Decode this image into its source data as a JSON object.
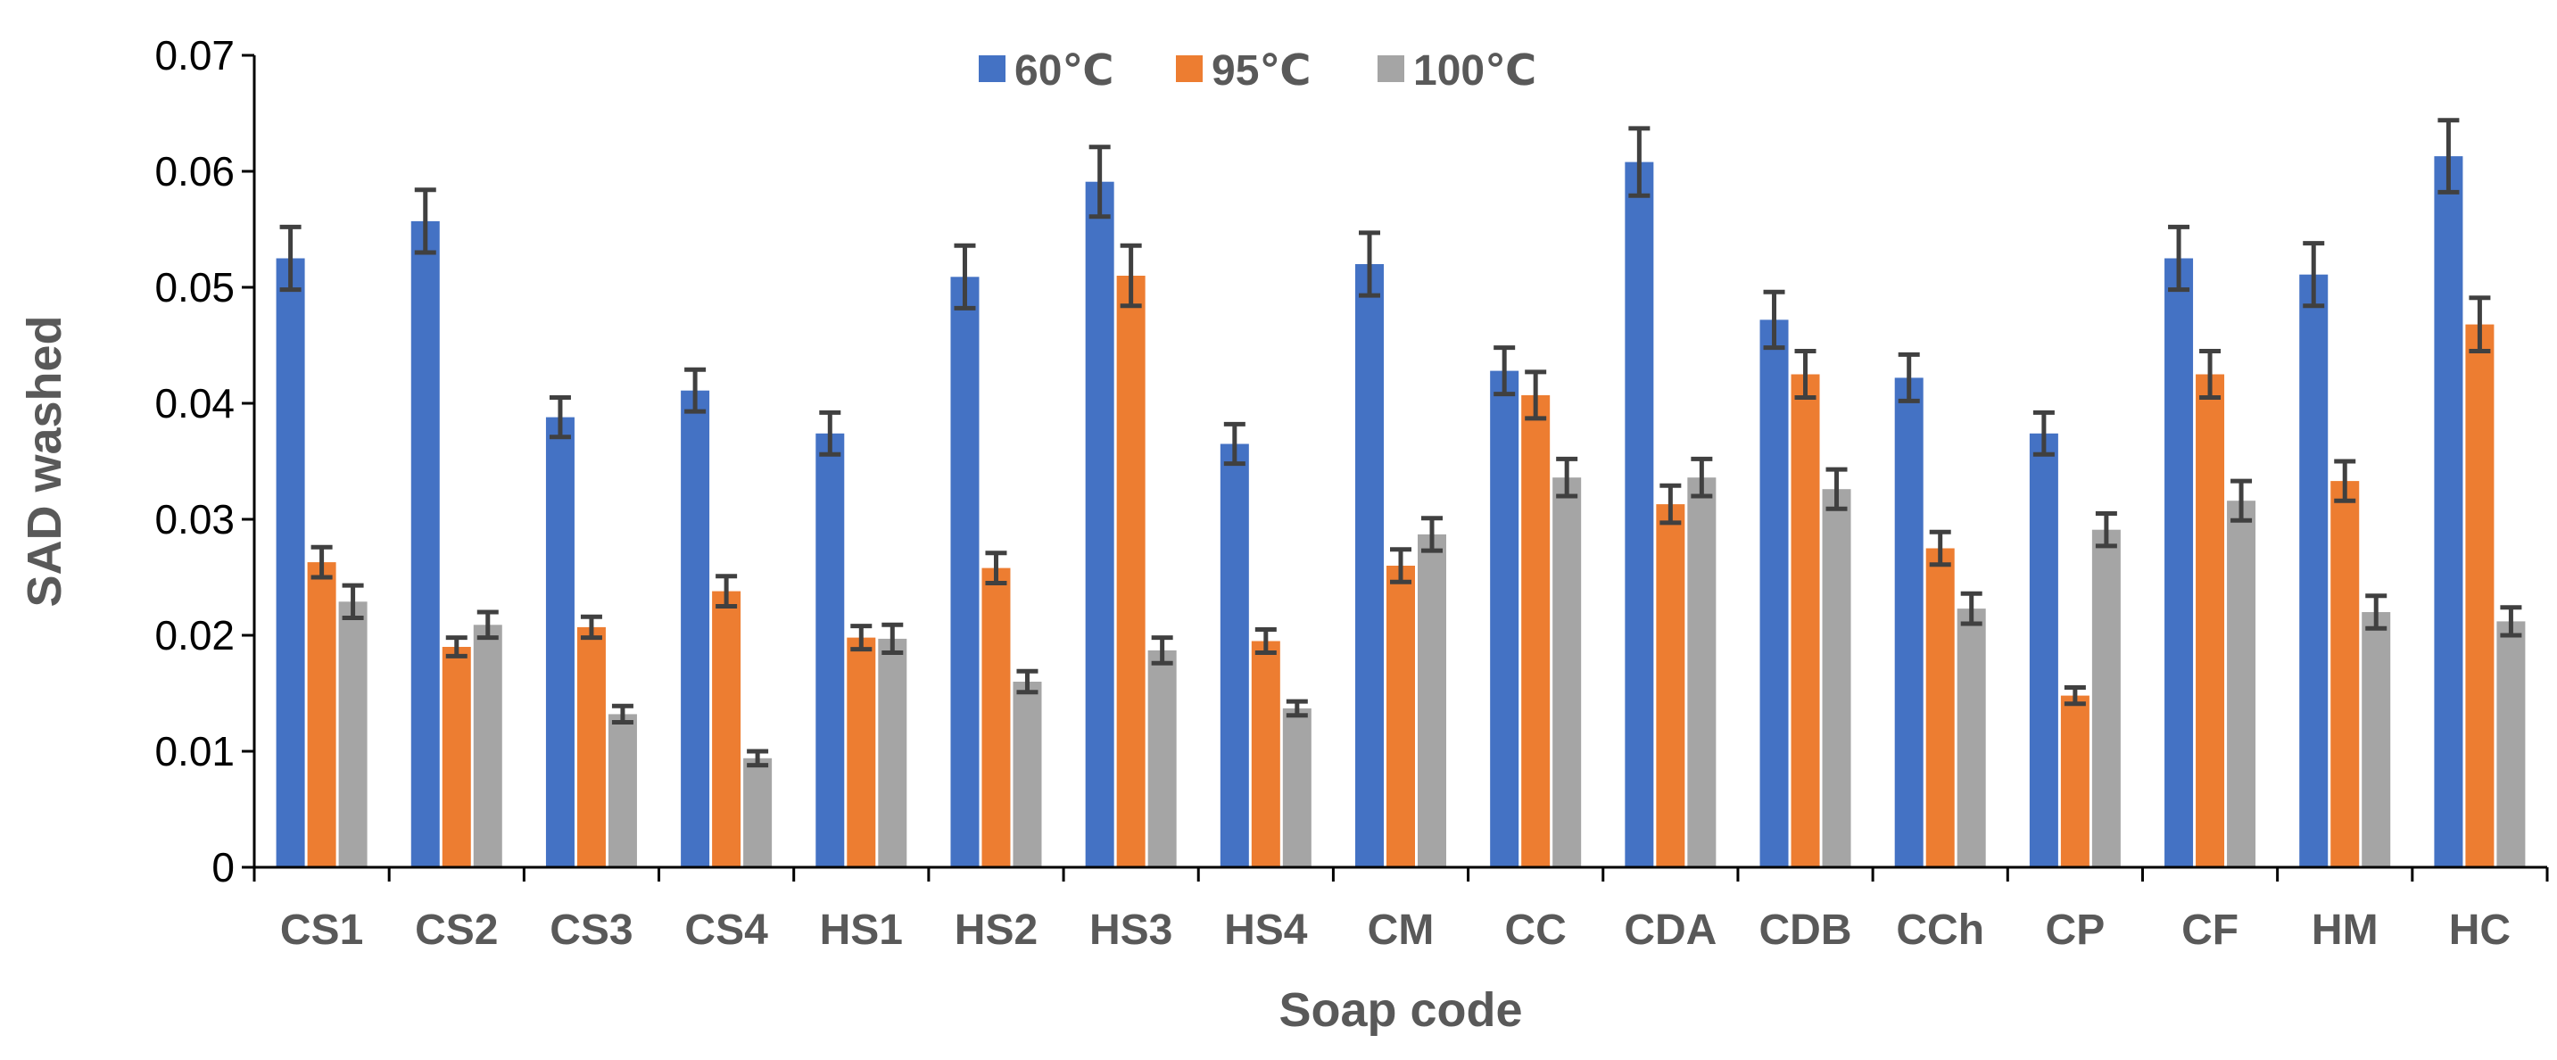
{
  "chart_data": {
    "type": "bar",
    "title": "",
    "xlabel": "Soap code",
    "ylabel": "SAD washed",
    "ylim": [
      0,
      0.07
    ],
    "yticks": [
      "0",
      "0.01",
      "0.02",
      "0.03",
      "0.04",
      "0.05",
      "0.06",
      "0.07"
    ],
    "grid": false,
    "legend_position": "top-center",
    "categories": [
      "CS1",
      "CS2",
      "CS3",
      "CS4",
      "HS1",
      "HS2",
      "HS3",
      "HS4",
      "CM",
      "CC",
      "CDA",
      "CDB",
      "CCh",
      "CP",
      "CF",
      "HM",
      "HC"
    ],
    "series": [
      {
        "name": "60℃",
        "color": "#4472C4",
        "values": [
          0.0525,
          0.0557,
          0.0388,
          0.0411,
          0.0374,
          0.0509,
          0.0591,
          0.0365,
          0.052,
          0.0428,
          0.0608,
          0.0472,
          0.0422,
          0.0374,
          0.0525,
          0.0511,
          0.0613
        ],
        "errors": [
          0.0027,
          0.0027,
          0.0017,
          0.0018,
          0.0018,
          0.0027,
          0.003,
          0.0017,
          0.0027,
          0.002,
          0.0029,
          0.0024,
          0.002,
          0.0018,
          0.0027,
          0.0027,
          0.0031
        ]
      },
      {
        "name": "95℃",
        "color": "#ED7D31",
        "values": [
          0.0263,
          0.019,
          0.0207,
          0.0238,
          0.0198,
          0.0258,
          0.051,
          0.0195,
          0.026,
          0.0407,
          0.0313,
          0.0425,
          0.0275,
          0.0148,
          0.0425,
          0.0333,
          0.0468
        ],
        "errors": [
          0.0013,
          0.0008,
          0.0009,
          0.0013,
          0.001,
          0.0013,
          0.0026,
          0.001,
          0.0014,
          0.002,
          0.0016,
          0.002,
          0.0014,
          0.0007,
          0.002,
          0.0017,
          0.0023
        ]
      },
      {
        "name": "100℃",
        "color": "#A5A5A5",
        "values": [
          0.0229,
          0.0209,
          0.0132,
          0.0094,
          0.0197,
          0.016,
          0.0187,
          0.0137,
          0.0287,
          0.0336,
          0.0336,
          0.0326,
          0.0223,
          0.0291,
          0.0316,
          0.022,
          0.0212
        ],
        "errors": [
          0.0014,
          0.0011,
          0.0007,
          0.0006,
          0.0012,
          0.0009,
          0.0011,
          0.0006,
          0.0014,
          0.0016,
          0.0016,
          0.0017,
          0.0013,
          0.0014,
          0.0017,
          0.0014,
          0.0012
        ]
      }
    ]
  }
}
